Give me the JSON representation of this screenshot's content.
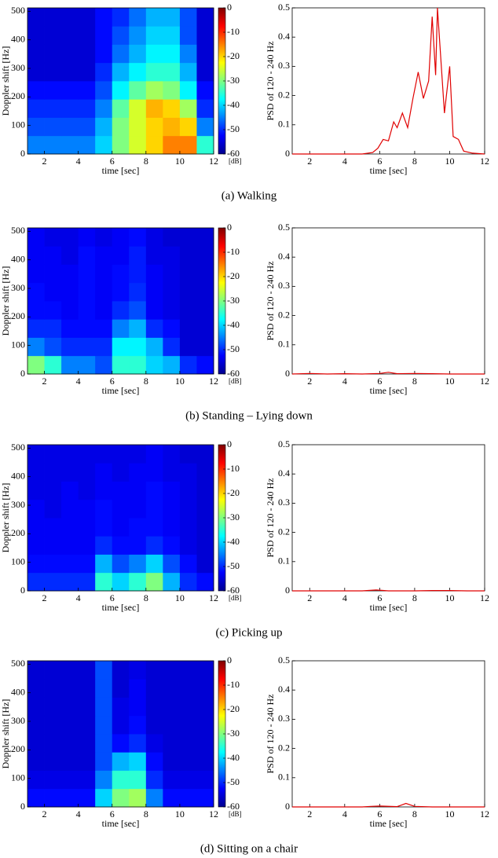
{
  "chart_data": [
    {
      "type": "heatmap",
      "xlabel": "time [sec]",
      "ylabel": "Doppler shift [Hz]",
      "xlim": [
        1,
        12
      ],
      "ylim": [
        0,
        512
      ],
      "xticks": [
        2,
        4,
        6,
        8,
        10,
        12
      ],
      "yticks": [
        0,
        100,
        200,
        300,
        400,
        500
      ],
      "colormap": "jet",
      "clim": [
        -60,
        0
      ],
      "cticks": [
        0,
        -10,
        -20,
        -30,
        -40,
        -50,
        -60
      ],
      "cbar_label": "[dB]",
      "xbins": [
        1,
        2,
        3,
        4,
        5,
        6,
        7,
        8,
        9,
        10,
        11,
        12
      ],
      "ybins": [
        0,
        64,
        128,
        192,
        256,
        320,
        384,
        448,
        512
      ],
      "z": [
        [
          -45,
          -45,
          -45,
          -45,
          -40,
          -30,
          -25,
          -20,
          -15,
          -15,
          -35
        ],
        [
          -48,
          -48,
          -48,
          -48,
          -42,
          -30,
          -25,
          -20,
          -18,
          -20,
          -45
        ],
        [
          -50,
          -50,
          -50,
          -50,
          -45,
          -32,
          -25,
          -18,
          -20,
          -28,
          -50
        ],
        [
          -52,
          -52,
          -52,
          -52,
          -48,
          -38,
          -32,
          -28,
          -30,
          -38,
          -52
        ],
        [
          -55,
          -55,
          -55,
          -55,
          -50,
          -42,
          -38,
          -35,
          -35,
          -42,
          -55
        ],
        [
          -55,
          -55,
          -55,
          -55,
          -52,
          -46,
          -42,
          -38,
          -38,
          -45,
          -55
        ],
        [
          -55,
          -55,
          -55,
          -55,
          -52,
          -48,
          -44,
          -40,
          -40,
          -48,
          -55
        ],
        [
          -55,
          -55,
          -55,
          -55,
          -52,
          -50,
          -46,
          -42,
          -42,
          -48,
          -55
        ]
      ]
    },
    {
      "type": "line",
      "xlabel": "time [sec]",
      "ylabel": "PSD of 120 - 240 Hz",
      "xlim": [
        1,
        12
      ],
      "ylim": [
        0,
        0.5
      ],
      "xticks": [
        2,
        4,
        6,
        8,
        10,
        12
      ],
      "yticks": [
        0,
        0.1,
        0.2,
        0.3,
        0.4,
        0.5
      ],
      "color": "#e00000",
      "x": [
        1,
        2,
        3,
        4,
        5,
        5.6,
        5.9,
        6.2,
        6.5,
        6.8,
        7.0,
        7.3,
        7.6,
        7.9,
        8.2,
        8.5,
        8.8,
        9.0,
        9.2,
        9.3,
        9.7,
        10.0,
        10.2,
        10.5,
        10.8,
        11.3,
        12
      ],
      "values": [
        0,
        0,
        0,
        0,
        0,
        0.005,
        0.02,
        0.05,
        0.045,
        0.11,
        0.09,
        0.14,
        0.09,
        0.19,
        0.28,
        0.19,
        0.25,
        0.47,
        0.27,
        0.5,
        0.14,
        0.3,
        0.06,
        0.05,
        0.01,
        0.003,
        0
      ]
    },
    {
      "type": "heatmap",
      "xlabel": "time [sec]",
      "ylabel": "Doppler shift [Hz]",
      "xlim": [
        1,
        12
      ],
      "ylim": [
        0,
        512
      ],
      "xticks": [
        2,
        4,
        6,
        8,
        10,
        12
      ],
      "yticks": [
        0,
        100,
        200,
        300,
        400,
        500
      ],
      "colormap": "jet",
      "clim": [
        -60,
        0
      ],
      "cticks": [
        0,
        -10,
        -20,
        -30,
        -40,
        -50,
        -60
      ],
      "cbar_label": "[dB]",
      "xbins": [
        1,
        2,
        3,
        4,
        5,
        6,
        7,
        8,
        9,
        10,
        11,
        12
      ],
      "ybins": [
        0,
        64,
        128,
        192,
        256,
        320,
        384,
        448,
        512
      ],
      "z": [
        [
          -30,
          -35,
          -45,
          -45,
          -48,
          -35,
          -35,
          -40,
          -42,
          -50,
          -52
        ],
        [
          -45,
          -48,
          -50,
          -50,
          -50,
          -38,
          -38,
          -42,
          -50,
          -55,
          -55
        ],
        [
          -50,
          -50,
          -52,
          -52,
          -52,
          -45,
          -42,
          -50,
          -52,
          -55,
          -55
        ],
        [
          -52,
          -52,
          -53,
          -52,
          -53,
          -50,
          -48,
          -53,
          -54,
          -55,
          -55
        ],
        [
          -52,
          -53,
          -53,
          -52,
          -53,
          -52,
          -50,
          -53,
          -54,
          -55,
          -55
        ],
        [
          -53,
          -53,
          -53,
          -52,
          -53,
          -52,
          -51,
          -53,
          -54,
          -55,
          -55
        ],
        [
          -53,
          -53,
          -54,
          -52,
          -53,
          -53,
          -51,
          -54,
          -54,
          -55,
          -55
        ],
        [
          -53,
          -54,
          -54,
          -53,
          -54,
          -53,
          -52,
          -54,
          -55,
          -55,
          -55
        ]
      ]
    },
    {
      "type": "line",
      "xlabel": "time [sec]",
      "ylabel": "PSD of 120 - 240 Hz",
      "xlim": [
        1,
        12
      ],
      "ylim": [
        0,
        0.5
      ],
      "xticks": [
        2,
        4,
        6,
        8,
        10,
        12
      ],
      "yticks": [
        0,
        0.1,
        0.2,
        0.3,
        0.4,
        0.5
      ],
      "color": "#e00000",
      "x": [
        1,
        2,
        3,
        4,
        5,
        6,
        6.5,
        7,
        8,
        9,
        10,
        11,
        12
      ],
      "values": [
        0,
        0.002,
        0,
        0.001,
        0,
        0.002,
        0.006,
        0.001,
        0.002,
        0.001,
        0,
        0,
        0
      ]
    },
    {
      "type": "heatmap",
      "xlabel": "time [sec]",
      "ylabel": "Doppler shift [Hz]",
      "xlim": [
        1,
        12
      ],
      "ylim": [
        0,
        512
      ],
      "xticks": [
        2,
        4,
        6,
        8,
        10,
        12
      ],
      "yticks": [
        0,
        100,
        200,
        300,
        400,
        500
      ],
      "colormap": "jet",
      "clim": [
        -60,
        0
      ],
      "cticks": [
        0,
        -10,
        -20,
        -30,
        -40,
        -50,
        -60
      ],
      "cbar_label": "[dB]",
      "xbins": [
        1,
        2,
        3,
        4,
        5,
        6,
        7,
        8,
        9,
        10,
        11,
        12
      ],
      "ybins": [
        0,
        64,
        128,
        192,
        256,
        320,
        384,
        448,
        512
      ],
      "z": [
        [
          -50,
          -50,
          -50,
          -50,
          -35,
          -40,
          -35,
          -30,
          -42,
          -50,
          -52
        ],
        [
          -52,
          -52,
          -52,
          -52,
          -42,
          -48,
          -45,
          -40,
          -48,
          -52,
          -55
        ],
        [
          -53,
          -53,
          -53,
          -53,
          -50,
          -52,
          -52,
          -50,
          -52,
          -54,
          -55
        ],
        [
          -53,
          -53,
          -53,
          -53,
          -52,
          -53,
          -52,
          -52,
          -53,
          -54,
          -55
        ],
        [
          -53,
          -54,
          -53,
          -53,
          -52,
          -53,
          -53,
          -52,
          -53,
          -54,
          -55
        ],
        [
          -54,
          -54,
          -53,
          -54,
          -53,
          -53,
          -53,
          -52,
          -53,
          -54,
          -55
        ],
        [
          -54,
          -54,
          -54,
          -54,
          -53,
          -54,
          -53,
          -53,
          -54,
          -54,
          -55
        ],
        [
          -54,
          -54,
          -54,
          -54,
          -54,
          -54,
          -54,
          -53,
          -54,
          -55,
          -55
        ]
      ]
    },
    {
      "type": "line",
      "xlabel": "time [sec]",
      "ylabel": "PSD of 120 - 240 Hz",
      "xlim": [
        1,
        12
      ],
      "ylim": [
        0,
        0.5
      ],
      "xticks": [
        2,
        4,
        6,
        8,
        10,
        12
      ],
      "yticks": [
        0,
        0.1,
        0.2,
        0.3,
        0.4,
        0.5
      ],
      "color": "#e00000",
      "x": [
        1,
        2,
        3,
        4,
        5,
        5.8,
        6.5,
        7,
        8,
        9,
        10,
        11,
        12
      ],
      "values": [
        0,
        0,
        0,
        0,
        0,
        0.003,
        0,
        0,
        0,
        0.001,
        0.001,
        0,
        0
      ]
    },
    {
      "type": "heatmap",
      "xlabel": "time [sec]",
      "ylabel": "Doppler shift [Hz]",
      "xlim": [
        1,
        12
      ],
      "ylim": [
        0,
        512
      ],
      "xticks": [
        2,
        4,
        6,
        8,
        10,
        12
      ],
      "yticks": [
        0,
        100,
        200,
        300,
        400,
        500
      ],
      "colormap": "jet",
      "clim": [
        -60,
        0
      ],
      "cticks": [
        0,
        -10,
        -20,
        -30,
        -40,
        -50,
        -60
      ],
      "cbar_label": "[dB]",
      "xbins": [
        1,
        2,
        3,
        4,
        5,
        6,
        7,
        8,
        9,
        10,
        11,
        12
      ],
      "ybins": [
        0,
        64,
        128,
        192,
        256,
        320,
        384,
        448,
        512
      ],
      "z": [
        [
          -52,
          -52,
          -52,
          -52,
          -40,
          -30,
          -28,
          -45,
          -52,
          -52,
          -52
        ],
        [
          -54,
          -54,
          -54,
          -54,
          -45,
          -35,
          -35,
          -50,
          -54,
          -54,
          -54
        ],
        [
          -55,
          -55,
          -55,
          -55,
          -48,
          -42,
          -40,
          -52,
          -55,
          -55,
          -55
        ],
        [
          -55,
          -55,
          -55,
          -55,
          -48,
          -52,
          -50,
          -54,
          -55,
          -55,
          -55
        ],
        [
          -55,
          -55,
          -55,
          -55,
          -48,
          -54,
          -52,
          -55,
          -55,
          -55,
          -55
        ],
        [
          -55,
          -55,
          -55,
          -55,
          -48,
          -54,
          -53,
          -55,
          -55,
          -55,
          -55
        ],
        [
          -55,
          -55,
          -55,
          -55,
          -48,
          -55,
          -53,
          -55,
          -55,
          -55,
          -55
        ],
        [
          -55,
          -55,
          -55,
          -55,
          -48,
          -55,
          -54,
          -55,
          -55,
          -55,
          -55
        ]
      ]
    },
    {
      "type": "line",
      "xlabel": "time [sec]",
      "ylabel": "PSD of 120 - 240 Hz",
      "xlim": [
        1,
        12
      ],
      "ylim": [
        0,
        0.5
      ],
      "xticks": [
        2,
        4,
        6,
        8,
        10,
        12
      ],
      "yticks": [
        0,
        0.1,
        0.2,
        0.3,
        0.4,
        0.5
      ],
      "color": "#e00000",
      "x": [
        1,
        2,
        3,
        4,
        5,
        5.5,
        6,
        7,
        7.5,
        8,
        9,
        10,
        11,
        12
      ],
      "values": [
        0,
        0,
        0,
        0,
        0,
        0.002,
        0.003,
        0.001,
        0.012,
        0.002,
        0,
        0,
        0,
        0
      ]
    }
  ],
  "captions": [
    "(a) Walking",
    "(b) Standing – Lying down",
    "(c) Picking up",
    "(d) Sitting on a chair"
  ]
}
